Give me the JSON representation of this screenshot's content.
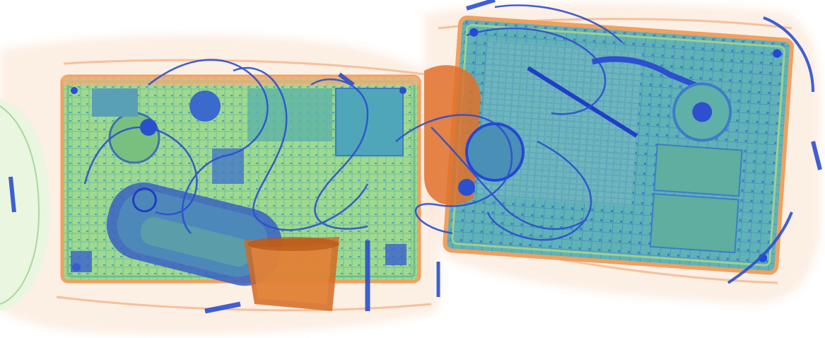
{
  "scene": {
    "kind": "x-ray baggage scan",
    "background": "#ffffff",
    "objects": [
      {
        "id": "bag-outline",
        "name": "bag-outline",
        "color": "#f3a878"
      },
      {
        "id": "left-laptop",
        "name": "laptop-left",
        "color": "#8fd49a"
      },
      {
        "id": "right-laptop",
        "name": "laptop-right",
        "color": "#4f9fc4"
      },
      {
        "id": "bottle",
        "name": "bottle",
        "color": "#3d62c8"
      },
      {
        "id": "cup",
        "name": "cup",
        "color": "#e0702a"
      },
      {
        "id": "cables",
        "name": "cables",
        "color": "#2b4fd0"
      }
    ],
    "palette": {
      "organic": "#f08a4b",
      "inorganic": "#7fd08f",
      "metal": "#2546d8",
      "mixed": "#4a9bb8"
    }
  }
}
